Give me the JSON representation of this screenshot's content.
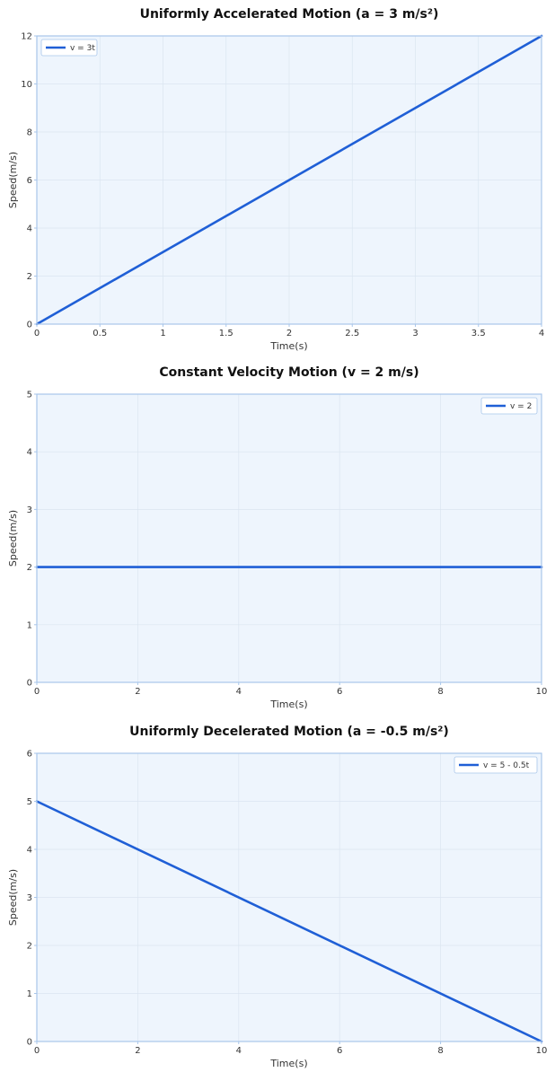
{
  "chart_data": [
    {
      "type": "line",
      "title": "Uniformly Accelerated Motion (a = 3 m/s²)",
      "xlabel": "Time(s)",
      "ylabel": "Speed(m/s)",
      "xlim": [
        0,
        4
      ],
      "ylim": [
        0,
        12
      ],
      "xticks": [
        0,
        0.5,
        1,
        1.5,
        2,
        2.5,
        3,
        3.5,
        4
      ],
      "xtick_labels": [
        "0",
        "0.5",
        "1",
        "1.5",
        "2",
        "2.5",
        "3",
        "3.5",
        "4"
      ],
      "yticks": [
        0,
        2,
        4,
        6,
        8,
        10,
        12
      ],
      "ytick_labels": [
        "0",
        "2",
        "4",
        "6",
        "8",
        "10",
        "12"
      ],
      "grid": true,
      "legend_position": "top-left",
      "series": [
        {
          "name": "v = 3t",
          "x": [
            0,
            4
          ],
          "y": [
            0,
            12
          ],
          "color": "#1f5fd6"
        }
      ]
    },
    {
      "type": "line",
      "title": "Constant Velocity Motion (v = 2 m/s)",
      "xlabel": "Time(s)",
      "ylabel": "Speed(m/s)",
      "xlim": [
        0,
        10
      ],
      "ylim": [
        0,
        5
      ],
      "xticks": [
        0,
        2,
        4,
        6,
        8,
        10
      ],
      "xtick_labels": [
        "0",
        "2",
        "4",
        "6",
        "8",
        "10"
      ],
      "yticks": [
        0,
        1,
        2,
        3,
        4,
        5
      ],
      "ytick_labels": [
        "0",
        "1",
        "2",
        "3",
        "4",
        "5"
      ],
      "grid": true,
      "legend_position": "top-right",
      "series": [
        {
          "name": "v = 2",
          "x": [
            0,
            10
          ],
          "y": [
            2,
            2
          ],
          "color": "#1f5fd6"
        }
      ]
    },
    {
      "type": "line",
      "title": "Uniformly Decelerated Motion (a = -0.5 m/s²)",
      "xlabel": "Time(s)",
      "ylabel": "Speed(m/s)",
      "xlim": [
        0,
        10
      ],
      "ylim": [
        0,
        6
      ],
      "xticks": [
        0,
        2,
        4,
        6,
        8,
        10
      ],
      "xtick_labels": [
        "0",
        "2",
        "4",
        "6",
        "8",
        "10"
      ],
      "yticks": [
        0,
        1,
        2,
        3,
        4,
        5,
        6
      ],
      "ytick_labels": [
        "0",
        "1",
        "2",
        "3",
        "4",
        "5",
        "6"
      ],
      "grid": true,
      "legend_position": "top-right",
      "series": [
        {
          "name": "v = 5 - 0.5t",
          "x": [
            0,
            10
          ],
          "y": [
            5,
            0
          ],
          "color": "#1f5fd6"
        }
      ]
    }
  ],
  "colors": {
    "plot_background": "#eef5fd",
    "axes_border": "#a9c6ea",
    "grid": "#dbe5f0",
    "line": "#1f5fd6"
  }
}
